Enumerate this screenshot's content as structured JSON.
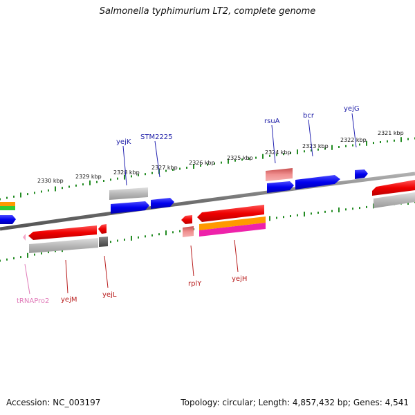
{
  "title": "Salmonella typhimurium LT2, complete genome",
  "footer": {
    "accession": "Accession: NC_003197",
    "topology": "Topology: circular; Length: 4,857,432 bp; Genes: 4,541"
  },
  "colors": {
    "backbone": "#808080",
    "tick": "#228B22",
    "forward_cds": "#0000ff",
    "reverse_cds": "#ff0000",
    "forward_label": "#1f1fa8",
    "reverse_label": "#b81c1c",
    "trna_label": "#e07ab8",
    "gene_gray": "#b0b0b0",
    "orange": "#ff9900",
    "magenta": "#ee22aa",
    "salmon": "#e07070",
    "green": "#33cc33"
  },
  "scale_labels": [
    "2330 kbp",
    "2329 kbp",
    "2328 kbp",
    "2327 kbp",
    "2326 kbp",
    "2325 kbp",
    "2324 kbp",
    "2323 kbp",
    "2322 kbp",
    "2321 kbp"
  ],
  "forward_genes": [
    "yejK",
    "STM2225",
    "rsuA",
    "bcr",
    "yejG"
  ],
  "reverse_genes": [
    "yejM",
    "yejL",
    "rplY",
    "yejH"
  ],
  "trna_genes": [
    "tRNAPro2"
  ]
}
